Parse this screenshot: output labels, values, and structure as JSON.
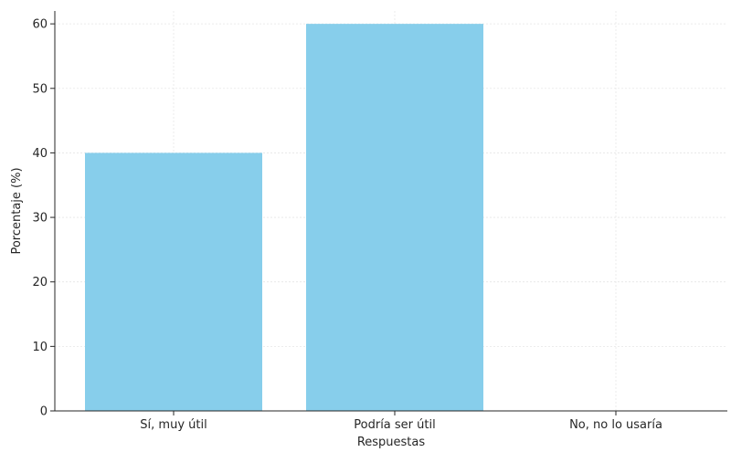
{
  "chart_data": {
    "type": "bar",
    "title": "",
    "xlabel": "Respuestas",
    "ylabel": "Porcentaje (%)",
    "categories": [
      "Sí, muy útil",
      "Podría ser útil",
      "No, no lo usaría"
    ],
    "values": [
      40,
      60,
      0
    ],
    "ylim": [
      0,
      62
    ],
    "yticks": [
      0,
      10,
      20,
      30,
      40,
      50,
      60
    ],
    "grid": true,
    "bar_color": "#87CEEB"
  }
}
